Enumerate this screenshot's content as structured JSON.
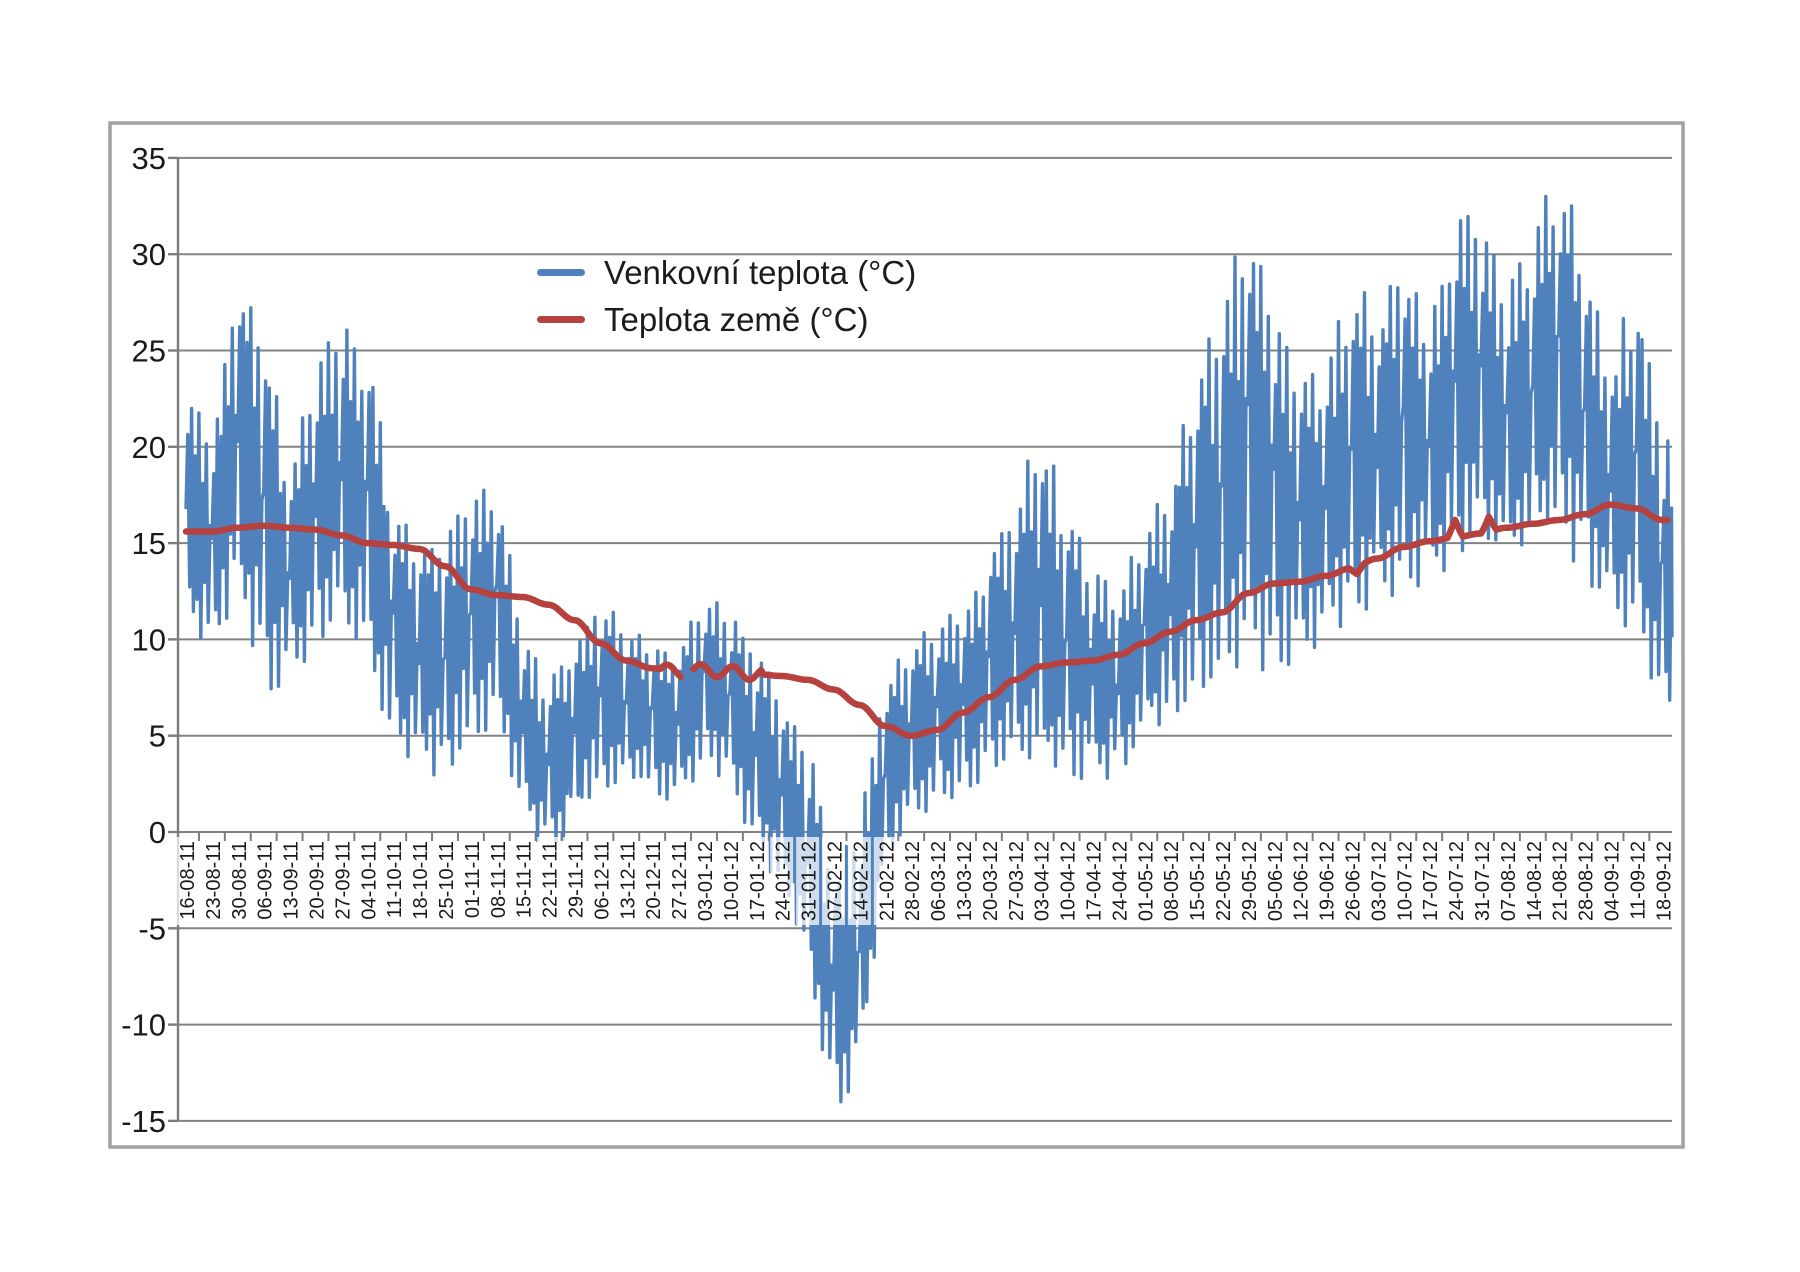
{
  "chart_data": {
    "type": "line",
    "title": "",
    "xlabel": "",
    "ylabel": "",
    "grid": "horizontal",
    "y_axis": {
      "min": -15,
      "max": 35,
      "step": 5,
      "tick_labels": [
        "35",
        "30",
        "25",
        "20",
        "15",
        "10",
        "5",
        "0",
        "-5",
        "-10",
        "-15"
      ],
      "zero_axis_has_category_labels": true
    },
    "x_axis": {
      "tick_interval_days": 7,
      "labels": [
        "16-08-11",
        "23-08-11",
        "30-08-11",
        "06-09-11",
        "13-09-11",
        "20-09-11",
        "27-09-11",
        "04-10-11",
        "11-10-11",
        "18-10-11",
        "25-10-11",
        "01-11-11",
        "08-11-11",
        "15-11-11",
        "22-11-11",
        "29-11-11",
        "06-12-11",
        "13-12-11",
        "20-12-11",
        "27-12-11",
        "03-01-12",
        "10-01-12",
        "17-01-12",
        "24-01-12",
        "31-01-12",
        "07-02-12",
        "14-02-12",
        "21-02-12",
        "28-02-12",
        "06-03-12",
        "13-03-12",
        "20-03-12",
        "27-03-12",
        "03-04-12",
        "10-04-12",
        "17-04-12",
        "24-04-12",
        "01-05-12",
        "08-05-12",
        "15-05-12",
        "22-05-12",
        "29-05-12",
        "05-06-12",
        "12-06-12",
        "19-06-12",
        "26-06-12",
        "03-07-12",
        "10-07-12",
        "17-07-12",
        "24-07-12",
        "31-07-12",
        "07-08-12",
        "14-08-12",
        "21-08-12",
        "28-08-12",
        "04-09-12",
        "11-09-12",
        "18-09-12"
      ]
    },
    "legend": {
      "position": "inside-top-left",
      "entries": [
        {
          "label": "Venkovní teplota (°C)",
          "color": "#4f81bd"
        },
        {
          "label": "Teplota země (°C)",
          "color": "#b6423f"
        }
      ]
    },
    "series": [
      {
        "name": "Venkovní teplota (°C)",
        "color": "#4f81bd",
        "style": "noisy-daily-oscillation",
        "weekly_envelope": {
          "low": [
            10.5,
            9.5,
            12,
            7,
            8,
            9.5,
            11,
            8.5,
            4.3,
            3.2,
            2.8,
            5,
            5.5,
            1,
            -1.5,
            0.5,
            2,
            3,
            2,
            1.5,
            3.5,
            2.5,
            -1,
            -3,
            -7,
            -14.8,
            -12.5,
            -2,
            0.5,
            1.5,
            2,
            3,
            4,
            3,
            2.5,
            3,
            2.5,
            5,
            6,
            7,
            8,
            9,
            8,
            9,
            10,
            11,
            12,
            12.5,
            13,
            14,
            15,
            14,
            15,
            15.5,
            13,
            11,
            10,
            6.5
          ],
          "high": [
            23,
            20.5,
            29.3,
            26.7,
            18.5,
            24.5,
            26.3,
            25.5,
            17,
            15.5,
            15.3,
            17.5,
            18.7,
            10,
            8,
            9.8,
            12.3,
            10.5,
            10,
            9.5,
            12.3,
            11.5,
            9.5,
            7,
            5,
            -2,
            0.5,
            8.4,
            9.7,
            11,
            11.5,
            14.5,
            17.5,
            21,
            17,
            13.5,
            12.5,
            16,
            18,
            24.2,
            27,
            32.7,
            28,
            23.5,
            24,
            29,
            27,
            29.9,
            26,
            32,
            31.9,
            28,
            31,
            35,
            30,
            24,
            29.3,
            20.3
          ]
        },
        "observed_extremes": {
          "max": 35.0,
          "max_near": "21-08-12",
          "min": -14.8,
          "min_near": "07-02-12"
        }
      },
      {
        "name": "Teplota země (°C)",
        "color": "#b6423f",
        "style": "smooth",
        "weekly_values": [
          15.6,
          15.6,
          15.8,
          15.9,
          15.8,
          15.7,
          15.4,
          15.0,
          14.9,
          14.7,
          13.8,
          12.6,
          12.3,
          12.2,
          11.8,
          11.0,
          9.8,
          8.9,
          8.5,
          8.3,
          8.4,
          8.3,
          8.2,
          8.1,
          7.9,
          7.4,
          6.6,
          5.5,
          5.0,
          5.3,
          6.2,
          7.0,
          7.9,
          8.6,
          8.8,
          8.9,
          9.2,
          9.8,
          10.4,
          11.0,
          11.4,
          12.4,
          12.9,
          13.0,
          13.3,
          13.7,
          14.2,
          14.8,
          15.1,
          15.3,
          15.5,
          15.8,
          16.0,
          16.2,
          16.5,
          17.0,
          16.8,
          16.2
        ],
        "detail": {
          "wiggle_range": [
            18.3,
            22.3
          ],
          "wiggle_amp": 0.32,
          "gap_range": [
            19.2,
            19.55
          ],
          "spikes": [
            {
              "t": 49.0,
              "amp": 0.9
            },
            {
              "t": 50.3,
              "amp": 0.8
            },
            {
              "t": 45.2,
              "amp": -0.35
            }
          ]
        }
      }
    ],
    "colors": {
      "gridline": "#828282",
      "axis": "#7c7c7c",
      "frame": "#a2a2a2",
      "text": "#1a1a1a",
      "background": "#ffffff"
    }
  }
}
